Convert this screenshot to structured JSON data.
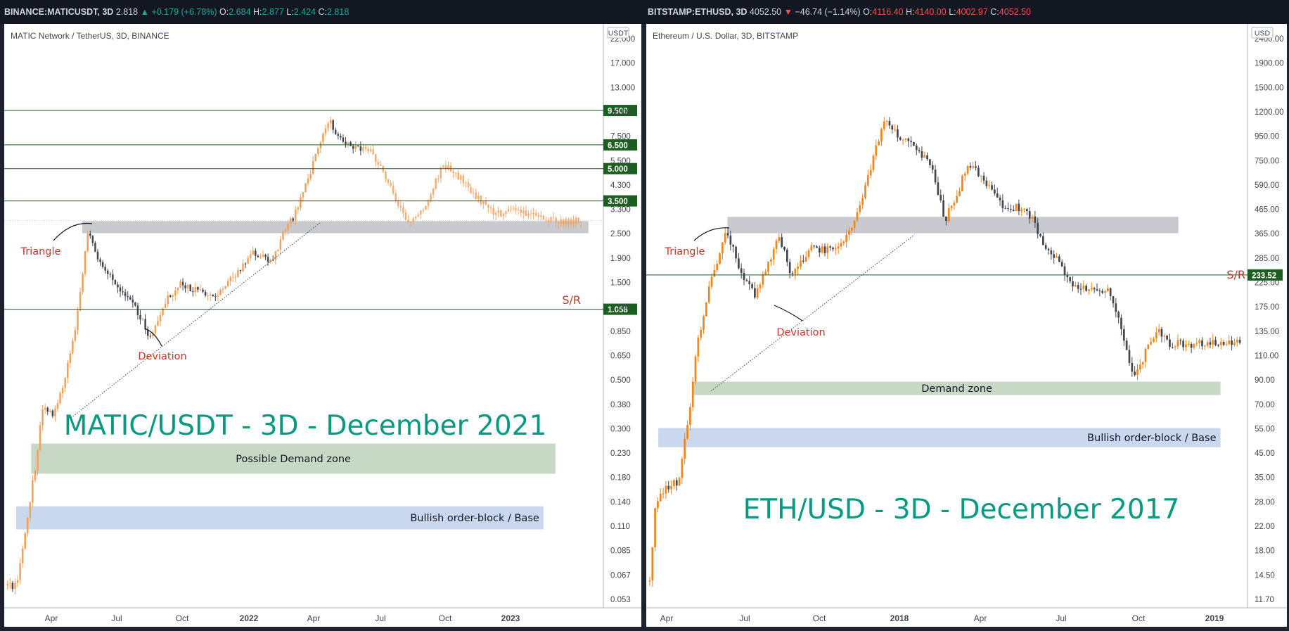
{
  "chart_data": [
    {
      "type": "candlestick",
      "header": {
        "symbol": "BINANCE:MATICUSDT, 3D",
        "last": "2.818",
        "change": "+0.179 (+6.78%)",
        "open": "2.684",
        "high": "2.877",
        "low": "2.424",
        "close": "2.818"
      },
      "subtitle": "MATIC Network / TetherUS, 3D, BINANCE",
      "currency": "USDT",
      "title": "MATIC/USDT - 3D - December 2021",
      "scale": "log",
      "ylim": [
        0.045,
        22
      ],
      "y_ticks": [
        "22.000",
        "17.000",
        "13.000",
        "10.000",
        "7.500",
        "5.500",
        "4.300",
        "3.300",
        "2.500",
        "1.900",
        "1.500",
        "1.200",
        "0.850",
        "0.650",
        "0.500",
        "0.380",
        "0.300",
        "0.230",
        "0.180",
        "0.140",
        "0.110",
        "0.085",
        "0.067",
        "0.053"
      ],
      "x_ticks": [
        "Apr",
        "Jul",
        "Oct",
        "2022",
        "Apr",
        "Jul",
        "Oct",
        "2023"
      ],
      "x_tick_major": [
        "2022",
        "2023"
      ],
      "levels": [
        {
          "value": 9.5,
          "label": "9.500"
        },
        {
          "value": 6.5,
          "label": "6.500"
        },
        {
          "value": 5.0,
          "label": "5.000"
        },
        {
          "value": 3.5,
          "label": "3.500"
        },
        {
          "value": 1.058,
          "label": "1.058"
        }
      ],
      "sr_label": "S/R",
      "zones": [
        {
          "label": "",
          "kind": "resistance",
          "low": 2.45,
          "high": 2.8,
          "x_from": 0.13,
          "x_to": 0.975
        },
        {
          "label": "Possible Demand zone",
          "kind": "demand",
          "low": 0.172,
          "high": 0.24,
          "x_from": 0.045,
          "x_to": 0.92
        },
        {
          "label": "Bullish order-block / Base",
          "kind": "orderblock",
          "low": 0.093,
          "high": 0.12,
          "x_from": 0.02,
          "x_to": 0.9
        }
      ],
      "annotations": [
        "Triangle",
        "Deviation"
      ],
      "colors": {
        "up": "#f2a15a",
        "down": "#434651",
        "level": "#1b5e20",
        "label": "#c0392b",
        "title": "#089981"
      }
    },
    {
      "type": "candlestick",
      "header": {
        "symbol": "BITSTAMP:ETHUSD, 3D",
        "last": "4052.50",
        "change": "−46.74 (−1.14%)",
        "open": "4116.40",
        "high": "4140.00",
        "low": "4002.97",
        "close": "4052.50"
      },
      "subtitle": "Ethereum / U.S. Dollar, 3D, BITSTAMP",
      "currency": "USD",
      "title": "ETH/USD - 3D - December 2017",
      "scale": "log",
      "ylim": [
        10.5,
        2400
      ],
      "y_ticks": [
        "2400.00",
        "1900.00",
        "1500.00",
        "1200.00",
        "950.00",
        "750.00",
        "590.00",
        "465.00",
        "365.00",
        "285.00",
        "225.00",
        "175.00",
        "135.00",
        "110.00",
        "90.00",
        "70.00",
        "55.00",
        "45.00",
        "35.00",
        "28.00",
        "22.00",
        "18.00",
        "14.50",
        "11.70"
      ],
      "x_ticks": [
        "Apr",
        "Jul",
        "Oct",
        "2018",
        "Apr",
        "Jul",
        "Oct",
        "2019"
      ],
      "x_tick_major": [
        "2018",
        "2019"
      ],
      "levels": [
        {
          "value": 233.52,
          "label": "233.52"
        }
      ],
      "sr_label": "S/R",
      "zones": [
        {
          "label": "",
          "kind": "resistance",
          "low": 350,
          "high": 410,
          "x_from": 0.135,
          "x_to": 0.885
        },
        {
          "label": "Demand zone",
          "kind": "demand",
          "low": 73,
          "high": 83,
          "x_from": 0.078,
          "x_to": 0.955
        },
        {
          "label": "Bullish order-block / Base",
          "kind": "orderblock",
          "low": 44,
          "high": 53,
          "x_from": 0.02,
          "x_to": 0.955
        }
      ],
      "annotations": [
        "Triangle",
        "Deviation"
      ],
      "colors": {
        "up": "#f0851a",
        "down": "#434651",
        "level": "#1b5e20",
        "label": "#c0392b",
        "title": "#089981"
      }
    }
  ]
}
